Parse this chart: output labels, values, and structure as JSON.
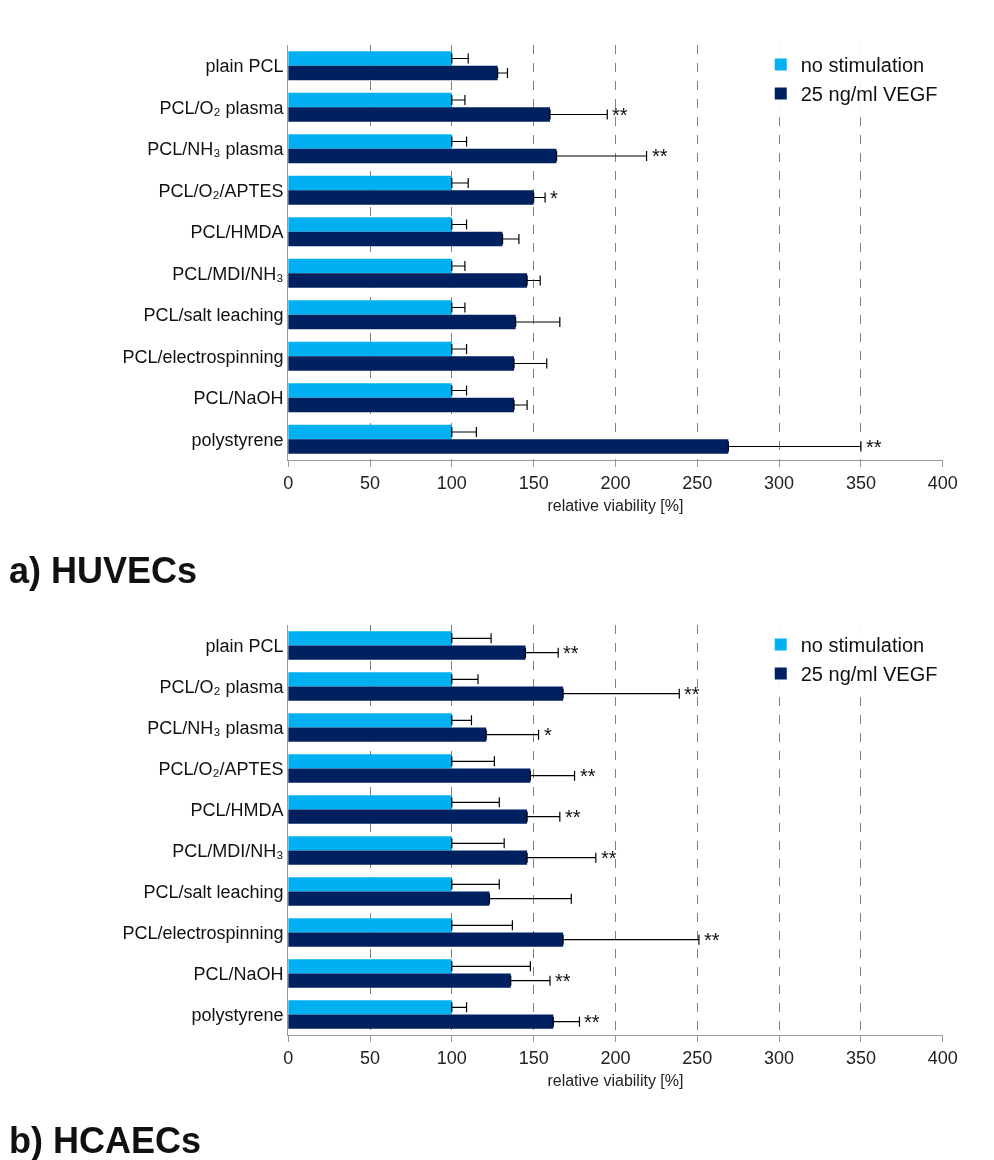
{
  "chart_data": [
    {
      "type": "bar",
      "orientation": "horizontal",
      "title": "a) HUVECs",
      "xlabel": "relative viability [%]",
      "categories": [
        "plain PCL",
        "PCL/O₂ plasma",
        "PCL/NH₃ plasma",
        "PCL/O₂/APTES",
        "PCL/HMDA",
        "PCL/MDI/NH₃",
        "PCL/salt leaching",
        "PCL/electrospinning",
        "PCL/NaOH",
        "polystyrene"
      ],
      "series": [
        {
          "name": "no stimulation",
          "color": "#00b0f0",
          "values": [
            100,
            100,
            100,
            100,
            100,
            100,
            100,
            100,
            100,
            100
          ],
          "errors": [
            [
              100,
              110
            ],
            [
              100,
              108
            ],
            [
              100,
              109
            ],
            [
              100,
              110
            ],
            [
              100,
              109
            ],
            [
              100,
              108
            ],
            [
              100,
              108
            ],
            [
              100,
              109
            ],
            [
              100,
              109
            ],
            [
              100,
              115
            ]
          ]
        },
        {
          "name": "25 ng/ml VEGF",
          "color": "#002060",
          "values": [
            128,
            160,
            164,
            150,
            131,
            146,
            139,
            138,
            138,
            269
          ],
          "errors": [
            [
              128,
              134
            ],
            [
              160,
              195
            ],
            [
              164,
              219
            ],
            [
              150,
              157
            ],
            [
              131,
              141
            ],
            [
              146,
              154
            ],
            [
              139,
              166
            ],
            [
              138,
              158
            ],
            [
              138,
              146
            ],
            [
              269,
              350
            ]
          ]
        }
      ],
      "annotations": [
        {
          "text": "**",
          "x": 195,
          "y": "PCL/O₂ plasma"
        },
        {
          "text": "**",
          "x": 219,
          "y": "PCL/NH₃ plasma"
        },
        {
          "text": "*",
          "x": 157,
          "y": "PCL/O₂/APTES"
        },
        {
          "text": "**",
          "x": 350,
          "y": "polystyrene"
        }
      ],
      "xlim": [
        0,
        400
      ],
      "xticks": [
        0,
        50,
        100,
        150,
        200,
        250,
        300,
        350,
        400
      ],
      "grid": "x",
      "legend": "top right"
    },
    {
      "type": "bar",
      "orientation": "horizontal",
      "title": "b) HCAECs",
      "xlabel": "relative viability [%]",
      "categories": [
        "plain PCL",
        "PCL/O₂ plasma",
        "PCL/NH₃ plasma",
        "PCL/O₂/APTES",
        "PCL/HMDA",
        "PCL/MDI/NH₃",
        "PCL/salt leaching",
        "PCL/electrospinning",
        "PCL/NaOH",
        "polystyrene"
      ],
      "series": [
        {
          "name": "no stimulation",
          "color": "#00b0f0",
          "values": [
            100,
            100,
            100,
            100,
            100,
            100,
            100,
            100,
            100,
            100
          ],
          "errors": [
            [
              100,
              124
            ],
            [
              100,
              116
            ],
            [
              100,
              112
            ],
            [
              100,
              126
            ],
            [
              100,
              129
            ],
            [
              100,
              132
            ],
            [
              100,
              129
            ],
            [
              100,
              137
            ],
            [
              100,
              148
            ],
            [
              100,
              109
            ]
          ]
        },
        {
          "name": "25 ng/ml VEGF",
          "color": "#002060",
          "values": [
            145,
            168,
            121,
            148,
            146,
            146,
            123,
            168,
            136,
            162
          ],
          "errors": [
            [
              145,
              165
            ],
            [
              168,
              239
            ],
            [
              121,
              153
            ],
            [
              148,
              175
            ],
            [
              146,
              166
            ],
            [
              146,
              188
            ],
            [
              123,
              173
            ],
            [
              168,
              251
            ],
            [
              136,
              160
            ],
            [
              162,
              178
            ]
          ]
        }
      ],
      "annotations": [
        {
          "text": "**",
          "x": 165,
          "y": "plain PCL"
        },
        {
          "text": "**",
          "x": 239,
          "y": "PCL/O₂ plasma"
        },
        {
          "text": "*",
          "x": 153,
          "y": "PCL/NH₃ plasma"
        },
        {
          "text": "**",
          "x": 175,
          "y": "PCL/O₂/APTES"
        },
        {
          "text": "**",
          "x": 166,
          "y": "PCL/HMDA"
        },
        {
          "text": "**",
          "x": 188,
          "y": "PCL/MDI/NH₃"
        },
        {
          "text": "**",
          "x": 251,
          "y": "PCL/electrospinning"
        },
        {
          "text": "**",
          "x": 160,
          "y": "PCL/NaOH"
        },
        {
          "text": "**",
          "x": 178,
          "y": "polystyrene"
        }
      ],
      "xlim": [
        0,
        400
      ],
      "xticks": [
        0,
        50,
        100,
        150,
        200,
        250,
        300,
        350,
        400
      ],
      "grid": "x",
      "legend": "top right"
    }
  ]
}
